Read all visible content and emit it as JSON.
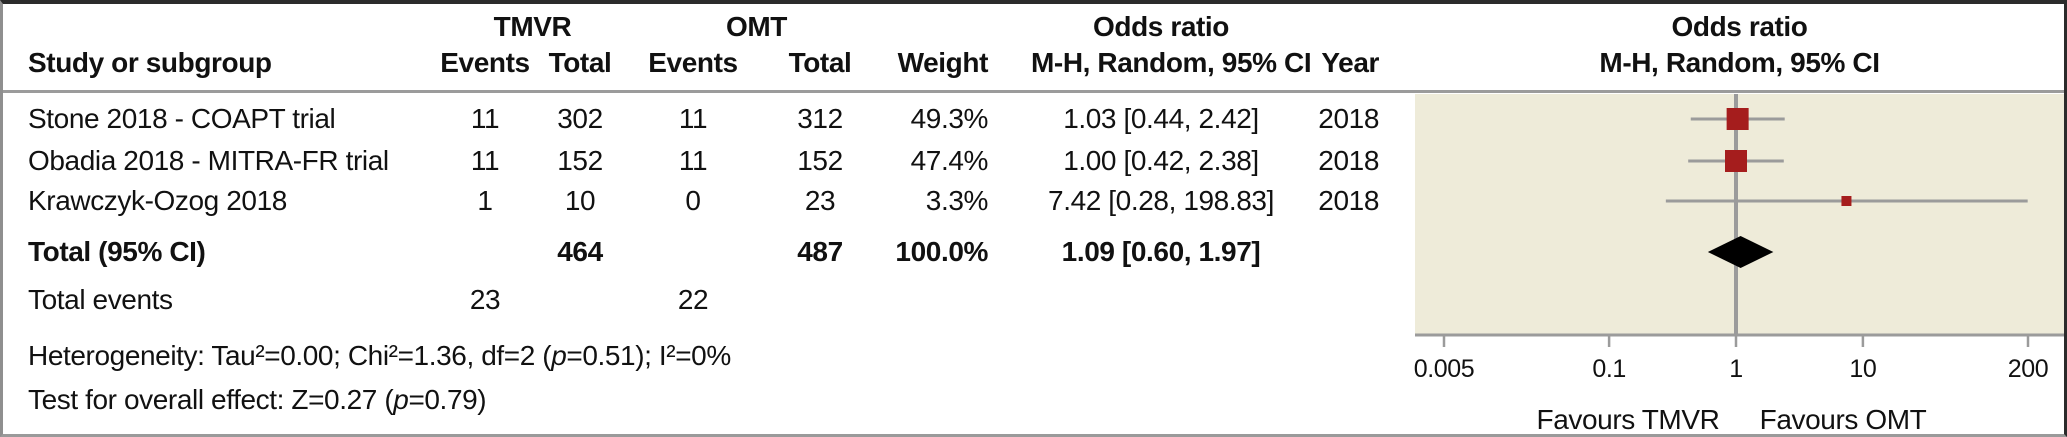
{
  "header": {
    "study_col": "Study or subgroup",
    "tmvr_group": "TMVR",
    "omt_group": "OMT",
    "events_col": "Events",
    "total_col": "Total",
    "weight_col": "Weight",
    "or_col_line1": "Odds ratio",
    "or_col_line2": "M-H, Random, 95% CI",
    "year_col": "Year",
    "plot_title_line1": "Odds ratio",
    "plot_title_line2": "M-H, Random, 95% CI"
  },
  "rows": [
    {
      "study": "Stone 2018 - COAPT trial",
      "tmvr_events": "11",
      "tmvr_total": "302",
      "omt_events": "11",
      "omt_total": "312",
      "weight": "49.3%",
      "or_ci": "1.03 [0.44, 2.42]",
      "year": "2018"
    },
    {
      "study": "Obadia 2018 - MITRA-FR trial",
      "tmvr_events": "11",
      "tmvr_total": "152",
      "omt_events": "11",
      "omt_total": "152",
      "weight": "47.4%",
      "or_ci": "1.00 [0.42, 2.38]",
      "year": "2018"
    },
    {
      "study": "Krawczyk-Ozog 2018",
      "tmvr_events": "1",
      "tmvr_total": "10",
      "omt_events": "0",
      "omt_total": "23",
      "weight": "3.3%",
      "or_ci": "7.42 [0.28, 198.83]",
      "year": "2018"
    }
  ],
  "total_row": {
    "label": "Total (95% CI)",
    "tmvr_total": "464",
    "omt_total": "487",
    "weight": "100.0%",
    "or_ci": "1.09 [0.60, 1.97]"
  },
  "total_events": {
    "label": "Total events",
    "tmvr": "23",
    "omt": "22"
  },
  "heterogeneity": {
    "pre": "Heterogeneity: Tau²=0.00; Chi²=1.36, df=2 (",
    "p": "p",
    "post": "=0.51); I²=0%"
  },
  "overall_effect": {
    "pre": "Test for overall effect: Z=0.27 (",
    "p": "p",
    "post": "=0.79)"
  },
  "colors": {
    "marker": "#a51d1d",
    "diamond": "#000000",
    "plot_bg": "#eeebd9",
    "line_gray": "#9b9b9b"
  },
  "chart_data": {
    "type": "scatter",
    "subtype": "forest-plot",
    "effect_measure": "Odds ratio, M-H, Random, 95% CI",
    "x_axis": {
      "scale": "log",
      "ticks": [
        0.005,
        0.1,
        1,
        10,
        200
      ],
      "tick_labels": [
        "0.005",
        "0.1",
        "1",
        "10",
        "200"
      ],
      "favours_left": "Favours TMVR",
      "favours_right": "Favours OMT"
    },
    "studies": [
      {
        "name": "Stone 2018 - COAPT trial",
        "tmvr_events": 11,
        "tmvr_total": 302,
        "omt_events": 11,
        "omt_total": 312,
        "weight_pct": 49.3,
        "or": 1.03,
        "ci": [
          0.44,
          2.42
        ],
        "year": 2018
      },
      {
        "name": "Obadia 2018 - MITRA-FR trial",
        "tmvr_events": 11,
        "tmvr_total": 152,
        "omt_events": 11,
        "omt_total": 152,
        "weight_pct": 47.4,
        "or": 1.0,
        "ci": [
          0.42,
          2.38
        ],
        "year": 2018
      },
      {
        "name": "Krawczyk-Ozog 2018",
        "tmvr_events": 1,
        "tmvr_total": 10,
        "omt_events": 0,
        "omt_total": 23,
        "weight_pct": 3.3,
        "or": 7.42,
        "ci": [
          0.28,
          198.83
        ],
        "year": 2018
      }
    ],
    "overall": {
      "or": 1.09,
      "ci": [
        0.6,
        1.97
      ],
      "tmvr_total": 464,
      "omt_total": 487,
      "weight_pct": 100.0,
      "total_events_tmvr": 23,
      "total_events_omt": 22
    },
    "stats": {
      "tau2": 0.0,
      "chi2": 1.36,
      "df": 2,
      "p_heterogeneity": 0.51,
      "i2": "0%",
      "z": 0.27,
      "p_overall": 0.79
    }
  }
}
